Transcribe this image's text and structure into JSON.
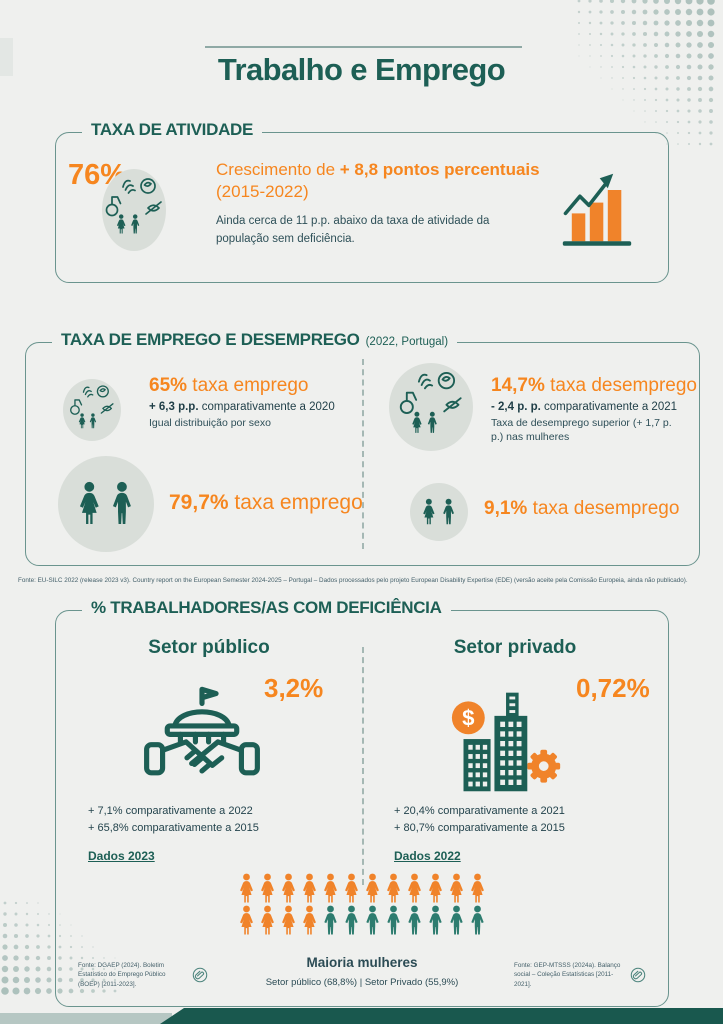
{
  "page": {
    "title": "Trabalho e Emprego"
  },
  "palette": {
    "teal": "#1d5f55",
    "orange": "#f6861f",
    "background": "#eff0ee",
    "circle_bg": "#d9ded9",
    "picto_teal": "#2d7c6f"
  },
  "section_atividade": {
    "header": "TAXA DE ATIVIDADE",
    "value": "76%",
    "growth_prefix": "Crescimento de ",
    "growth_bold": "+ 8,8 pontos percentuais",
    "growth_period": "(2015-2022)",
    "note": "Ainda cerca de 11 p.p. abaixo da taxa de atividade da população sem deficiência.",
    "icons": {
      "left": "disability-people-icon",
      "right": "growth-bar-chart-icon"
    }
  },
  "section_emprego": {
    "header": "TAXA DE EMPREGO E DESEMPREGO",
    "subheader": "(2022, Portugal)",
    "cells": {
      "emprego_2022": {
        "value": "65%",
        "label": " taxa emprego",
        "delta_bold": "+ 6,3 p.p.",
        "delta_rest": " comparativamente a 2020",
        "note": "Igual distribuição por sexo",
        "icon": "disability-people-icon"
      },
      "desemprego_2022": {
        "value": "14,7%",
        "label": " taxa desemprego",
        "delta_bold": "- 2,4 p. p.",
        "delta_rest": " comparativamente a 2021",
        "note": "Taxa de desemprego superior (+ 1,7 p. p.) nas mulheres",
        "icon": "disability-people-icon"
      },
      "emprego_total": {
        "value": "79,7%",
        "label": " taxa emprego",
        "icon": "couple-icon"
      },
      "desemprego_total": {
        "value": "9,1%",
        "label": " taxa desemprego",
        "icon": "couple-icon"
      }
    }
  },
  "section_trabalhadores": {
    "header": "% TRABALHADORES/AS COM DEFICIÊNCIA",
    "publico": {
      "title": "Setor público",
      "value": "3,2%",
      "comp1": "+ 7,1%  comparativamente a 2022",
      "comp2": "+ 65,8% comparativamente a 2015",
      "dados": "Dados 2023",
      "icon": "government-handshake-icon"
    },
    "privado": {
      "title": "Setor privado",
      "value": "0,72%",
      "comp1": "+ 20,4%  comparativamente a 2021",
      "comp2": "+ 80,7% comparativamente a 2015",
      "dados": "Dados 2022",
      "icon": "private-buildings-dollar-gear-icon"
    },
    "pictogram": {
      "caption": "Maioria mulheres",
      "subcaption": "Setor público (68,8%) | Setor Privado (55,9%)",
      "rows": [
        [
          {
            "type": "woman",
            "color": "#f0832a",
            "count": 12
          }
        ],
        [
          {
            "type": "woman",
            "color": "#f0832a",
            "count": 4
          },
          {
            "type": "man",
            "color": "#2d7c6f",
            "count": 8
          }
        ]
      ]
    }
  },
  "fontes": {
    "eu_silc": "Fonte: EU-SILC 2022 (release 2023 v3). Country report on the European Semester 2024-2025 – Portugal – Dados processados pelo projeto European Disability Expertise (EDE) (versão aceite pela Comissão Europeia, ainda não publicado).",
    "setor_publico": "Fonte: DGAEP (2024). Boletim Estatístico do Emprego Público (BOEP) [2011-2023].",
    "setor_privado": "Fonte: GEP-MTSSS (2024a). Balanço social – Coleção Estatísticas [2011-2021]."
  }
}
